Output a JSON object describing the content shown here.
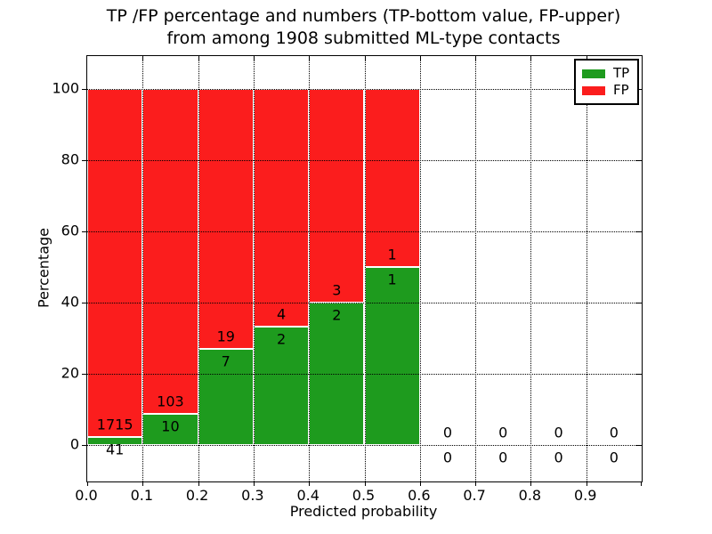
{
  "figure": {
    "title_line1": "TP /FP percentage and numbers (TP-bottom value, FP-upper)",
    "title_line2": "from among 1908 submitted ML-type contacts",
    "xlabel": "Predicted probability",
    "ylabel": "Percentage"
  },
  "legend": {
    "position": "upper right",
    "items": [
      {
        "label": "TP",
        "color": "#1e9b1e"
      },
      {
        "label": "FP",
        "color": "#fb1d1d"
      }
    ]
  },
  "chart_data": {
    "type": "bar",
    "stacked": true,
    "normalized_to_percent": 100,
    "title": "TP /FP percentage and numbers (TP-bottom value, FP-upper) from among 1908 submitted ML-type contacts",
    "xlabel": "Predicted probability",
    "ylabel": "Percentage",
    "total_contacts": 1908,
    "xlim": [
      0.0,
      1.0
    ],
    "ylim": [
      -10.25,
      109.25
    ],
    "xticks": [
      "0.0",
      "0.1",
      "0.2",
      "0.3",
      "0.4",
      "0.5",
      "0.6",
      "0.7",
      "0.8",
      "0.9"
    ],
    "yticks": [
      0,
      20,
      40,
      60,
      80,
      100
    ],
    "grid": {
      "style": "dotted",
      "color": "#000000"
    },
    "bin_edges": [
      0.0,
      0.1,
      0.2,
      0.3,
      0.4,
      0.5,
      0.6,
      0.7,
      0.8,
      0.9,
      1.0
    ],
    "series": [
      {
        "name": "TP",
        "color": "#1e9b1e",
        "counts": [
          41,
          10,
          7,
          2,
          2,
          1,
          0,
          0,
          0,
          0
        ]
      },
      {
        "name": "FP",
        "color": "#fb1d1d",
        "counts": [
          1715,
          103,
          19,
          4,
          3,
          1,
          0,
          0,
          0,
          0
        ]
      }
    ],
    "tp_percent_by_bin": [
      2.3,
      8.8,
      26.9,
      33.3,
      40.0,
      50.0,
      null,
      null,
      null,
      null
    ]
  },
  "colors": {
    "tp": "#1e9b1e",
    "fp": "#fb1d1d",
    "grid": "#000000",
    "text": "#000000",
    "background": "#ffffff"
  }
}
